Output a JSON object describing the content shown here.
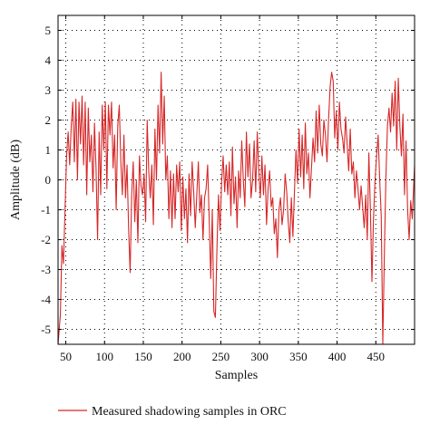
{
  "chart_data": {
    "type": "line",
    "xlabel": "Samples",
    "ylabel": "Amplitude (dB)",
    "xlim": [
      40,
      500
    ],
    "ylim": [
      -5.5,
      5.5
    ],
    "xticks": [
      50,
      100,
      150,
      200,
      250,
      300,
      350,
      400,
      450
    ],
    "yticks": [
      -5,
      -4,
      -3,
      -2,
      -1,
      0,
      1,
      2,
      3,
      4,
      5
    ],
    "grid": "dotted",
    "legend": "bottom-left, below plot",
    "series": [
      {
        "name": "Measured shadowing samples in ORC",
        "color": "#d62728",
        "points": [
          [
            40,
            -5.5
          ],
          [
            43,
            -4.5
          ],
          [
            45,
            -2.2
          ],
          [
            47,
            -2.8
          ],
          [
            49,
            -1.0
          ],
          [
            51,
            0.8
          ],
          [
            53,
            1.6
          ],
          [
            55,
            0.5
          ],
          [
            57,
            1.8
          ],
          [
            59,
            2.6
          ],
          [
            61,
            0.6
          ],
          [
            63,
            2.7
          ],
          [
            65,
            0.0
          ],
          [
            67,
            2.6
          ],
          [
            69,
            1.2
          ],
          [
            71,
            2.8
          ],
          [
            73,
            0.5
          ],
          [
            75,
            2.6
          ],
          [
            77,
            -0.5
          ],
          [
            79,
            2.4
          ],
          [
            81,
            0.6
          ],
          [
            83,
            1.5
          ],
          [
            85,
            -0.4
          ],
          [
            87,
            1.9
          ],
          [
            89,
            0.4
          ],
          [
            91,
            -2.0
          ],
          [
            93,
            1.6
          ],
          [
            95,
            -0.5
          ],
          [
            97,
            2.5
          ],
          [
            99,
            1.0
          ],
          [
            101,
            2.6
          ],
          [
            103,
            -0.3
          ],
          [
            105,
            2.5
          ],
          [
            107,
            1.5
          ],
          [
            109,
            2.6
          ],
          [
            111,
            0.4
          ],
          [
            113,
            1.5
          ],
          [
            115,
            -1.0
          ],
          [
            117,
            1.8
          ],
          [
            119,
            2.5
          ],
          [
            121,
            0.6
          ],
          [
            123,
            -0.5
          ],
          [
            125,
            1.5
          ],
          [
            127,
            -0.6
          ],
          [
            129,
            0.5
          ],
          [
            131,
            -1.6
          ],
          [
            133,
            -3.1
          ],
          [
            135,
            -0.5
          ],
          [
            137,
            0.6
          ],
          [
            139,
            -1.4
          ],
          [
            141,
            0.0
          ],
          [
            143,
            -2.1
          ],
          [
            145,
            0.8
          ],
          [
            147,
            -0.2
          ],
          [
            149,
            -0.5
          ],
          [
            151,
            0.2
          ],
          [
            153,
            -1.4
          ],
          [
            155,
            2.0
          ],
          [
            157,
            0.3
          ],
          [
            159,
            -0.6
          ],
          [
            161,
            0.5
          ],
          [
            163,
            -1.5
          ],
          [
            165,
            1.7
          ],
          [
            167,
            0.0
          ],
          [
            169,
            2.5
          ],
          [
            171,
            0.9
          ],
          [
            173,
            3.6
          ],
          [
            175,
            1.2
          ],
          [
            177,
            2.8
          ],
          [
            179,
            0.0
          ],
          [
            181,
            0.8
          ],
          [
            183,
            -1.3
          ],
          [
            185,
            0.3
          ],
          [
            187,
            -1.6
          ],
          [
            189,
            0.2
          ],
          [
            191,
            -1.3
          ],
          [
            193,
            0.5
          ],
          [
            195,
            -0.4
          ],
          [
            197,
            0.6
          ],
          [
            199,
            -1.7
          ],
          [
            201,
            0.1
          ],
          [
            203,
            -1.3
          ],
          [
            205,
            -0.3
          ],
          [
            207,
            -2.1
          ],
          [
            209,
            0.2
          ],
          [
            211,
            -1.2
          ],
          [
            213,
            0.6
          ],
          [
            215,
            -0.4
          ],
          [
            217,
            -1.6
          ],
          [
            219,
            -0.5
          ],
          [
            221,
            0.6
          ],
          [
            223,
            -1.1
          ],
          [
            225,
            -0.5
          ],
          [
            227,
            -2.0
          ],
          [
            229,
            -0.6
          ],
          [
            231,
            -0.3
          ],
          [
            233,
            0.5
          ],
          [
            235,
            -1.3
          ],
          [
            237,
            -3.3
          ],
          [
            239,
            -1.0
          ],
          [
            241,
            -4.4
          ],
          [
            243,
            -4.6
          ],
          [
            245,
            -2.3
          ],
          [
            247,
            -0.5
          ],
          [
            249,
            -1.7
          ],
          [
            251,
            -0.1
          ],
          [
            253,
            0.8
          ],
          [
            255,
            -0.4
          ],
          [
            257,
            0.5
          ],
          [
            259,
            -0.5
          ],
          [
            261,
            0.6
          ],
          [
            263,
            -1.2
          ],
          [
            265,
            1.1
          ],
          [
            267,
            -0.8
          ],
          [
            269,
            0.1
          ],
          [
            271,
            -1.6
          ],
          [
            273,
            0.3
          ],
          [
            275,
            -0.6
          ],
          [
            277,
            1.3
          ],
          [
            279,
            0.0
          ],
          [
            281,
            -0.9
          ],
          [
            283,
            1.6
          ],
          [
            285,
            0.1
          ],
          [
            287,
            1.2
          ],
          [
            289,
            -0.6
          ],
          [
            291,
            0.0
          ],
          [
            293,
            1.3
          ],
          [
            295,
            -0.4
          ],
          [
            297,
            1.6
          ],
          [
            299,
            0.3
          ],
          [
            301,
            -0.6
          ],
          [
            303,
            0.8
          ],
          [
            305,
            -0.5
          ],
          [
            307,
            0.5
          ],
          [
            309,
            -1.5
          ],
          [
            311,
            -0.3
          ],
          [
            313,
            0.3
          ],
          [
            315,
            -0.9
          ],
          [
            317,
            -0.6
          ],
          [
            319,
            -1.8
          ],
          [
            321,
            -1.3
          ],
          [
            323,
            -2.6
          ],
          [
            325,
            -1.0
          ],
          [
            327,
            -0.6
          ],
          [
            329,
            -1.5
          ],
          [
            331,
            -1.0
          ],
          [
            333,
            0.2
          ],
          [
            335,
            -0.4
          ],
          [
            337,
            -1.4
          ],
          [
            339,
            -2.1
          ],
          [
            341,
            -0.6
          ],
          [
            343,
            -1.9
          ],
          [
            345,
            -0.4
          ],
          [
            347,
            1.0
          ],
          [
            349,
            -0.1
          ],
          [
            351,
            1.7
          ],
          [
            353,
            0.1
          ],
          [
            355,
            1.5
          ],
          [
            357,
            -0.3
          ],
          [
            359,
            1.9
          ],
          [
            361,
            0.2
          ],
          [
            363,
            0.9
          ],
          [
            365,
            -0.6
          ],
          [
            367,
            0.4
          ],
          [
            369,
            1.4
          ],
          [
            371,
            0.6
          ],
          [
            373,
            2.3
          ],
          [
            375,
            0.9
          ],
          [
            377,
            2.5
          ],
          [
            379,
            1.2
          ],
          [
            381,
            0.8
          ],
          [
            383,
            2.0
          ],
          [
            385,
            1.5
          ],
          [
            387,
            0.6
          ],
          [
            389,
            2.0
          ],
          [
            391,
            3.1
          ],
          [
            393,
            3.6
          ],
          [
            395,
            3.3
          ],
          [
            397,
            1.4
          ],
          [
            399,
            2.3
          ],
          [
            401,
            1.0
          ],
          [
            403,
            2.6
          ],
          [
            405,
            1.7
          ],
          [
            407,
            1.4
          ],
          [
            409,
            0.9
          ],
          [
            411,
            2.1
          ],
          [
            413,
            1.2
          ],
          [
            415,
            0.3
          ],
          [
            417,
            1.7
          ],
          [
            419,
            0.2
          ],
          [
            421,
            0.6
          ],
          [
            423,
            -0.6
          ],
          [
            425,
            0.3
          ],
          [
            427,
            -0.3
          ],
          [
            429,
            -1.0
          ],
          [
            431,
            -0.2
          ],
          [
            433,
            -0.9
          ],
          [
            435,
            -1.6
          ],
          [
            437,
            -0.5
          ],
          [
            439,
            -2.0
          ],
          [
            441,
            0.9
          ],
          [
            443,
            -1.0
          ],
          [
            445,
            -3.4
          ],
          [
            447,
            -1.3
          ],
          [
            449,
            0.0
          ],
          [
            451,
            0.8
          ],
          [
            453,
            1.5
          ],
          [
            455,
            0.0
          ],
          [
            457,
            -1.2
          ],
          [
            459,
            -5.5
          ],
          [
            461,
            -2.5
          ],
          [
            463,
            0.1
          ],
          [
            465,
            1.8
          ],
          [
            467,
            2.4
          ],
          [
            469,
            1.6
          ],
          [
            471,
            2.9
          ],
          [
            473,
            1.8
          ],
          [
            475,
            3.3
          ],
          [
            477,
            1.0
          ],
          [
            479,
            3.4
          ],
          [
            481,
            1.8
          ],
          [
            483,
            0.8
          ],
          [
            485,
            2.2
          ],
          [
            487,
            -0.5
          ],
          [
            489,
            1.3
          ],
          [
            491,
            -1.0
          ],
          [
            493,
            -2.0
          ],
          [
            495,
            -0.7
          ],
          [
            497,
            -1.3
          ],
          [
            500,
            0.5
          ]
        ]
      }
    ]
  }
}
